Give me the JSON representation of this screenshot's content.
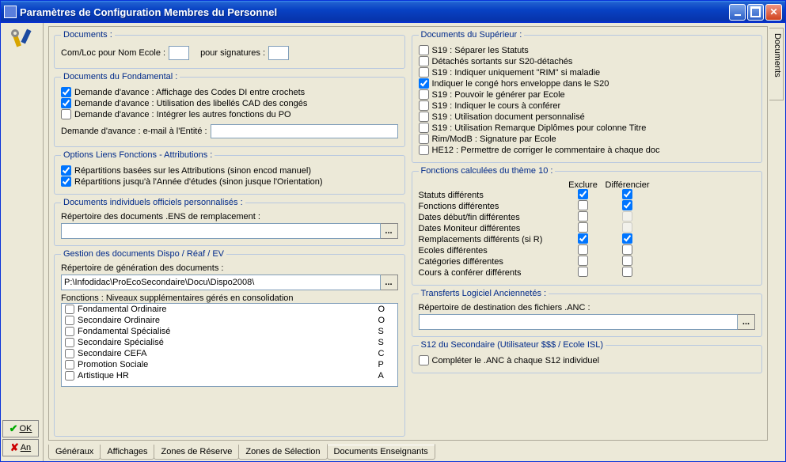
{
  "window": {
    "title": "Paramètres de Configuration Membres du Personnel"
  },
  "ok_btn": "OK",
  "an_btn": "An",
  "side_tab": "Documents",
  "documents": {
    "legend": "Documents :",
    "comloc_label": "Com/Loc pour Nom Ecole :",
    "comloc_value": "",
    "sign_label": "pour signatures :",
    "sign_value": ""
  },
  "fondamental": {
    "legend": "Documents du Fondamental :",
    "c1": "Demande d'avance : Affichage des Codes DI entre crochets",
    "c2": "Demande d'avance : Utilisation des libellés CAD des congés",
    "c3": "Demande d'avance : Intégrer les autres fonctions du PO",
    "email_label": "Demande d'avance : e-mail à l'Entité :",
    "email_value": ""
  },
  "options": {
    "legend": "Options Liens Fonctions - Attributions :",
    "c1": "Répartitions basées sur les Attributions (sinon encod manuel)",
    "c2": "Répartitions jusqu'à l'Année d'études (sinon jusque l'Orientation)"
  },
  "indiv": {
    "legend": "Documents individuels officiels personnalisés :",
    "rep_label": "Répertoire des documents .ENS de remplacement :",
    "rep_value": ""
  },
  "gestion": {
    "legend": "Gestion des documents Dispo / Réaf / EV",
    "rep_label": "Répertoire de génération des documents :",
    "rep_value": "P:\\Infodidac\\ProEcoSecondaire\\Docu\\Dispo2008\\",
    "niv_label": "Fonctions : Niveaux supplémentaires gérés en consolidation",
    "rows": [
      {
        "label": "Fondamental Ordinaire",
        "code": "O",
        "checked": false
      },
      {
        "label": "Secondaire Ordinaire",
        "code": "O",
        "checked": false
      },
      {
        "label": "Fondamental Spécialisé",
        "code": "S",
        "checked": false
      },
      {
        "label": "Secondaire Spécialisé",
        "code": "S",
        "checked": false
      },
      {
        "label": "Secondaire CEFA",
        "code": "C",
        "checked": false
      },
      {
        "label": "Promotion Sociale",
        "code": "P",
        "checked": false
      },
      {
        "label": "Artistique HR",
        "code": "A",
        "checked": false
      }
    ]
  },
  "superieur": {
    "legend": "Documents du Supérieur :",
    "items": [
      {
        "label": "S19 : Séparer les Statuts",
        "checked": false
      },
      {
        "label": "Détachés sortants sur S20-détachés",
        "checked": false
      },
      {
        "label": "S19 : Indiquer uniquement \"RIM\" si maladie",
        "checked": false
      },
      {
        "label": "Indiquer le congé hors enveloppe dans le S20",
        "checked": true
      },
      {
        "label": "S19 : Pouvoir le générer par Ecole",
        "checked": false
      },
      {
        "label": "S19 : Indiquer le cours à conférer",
        "checked": false
      },
      {
        "label": "S19 : Utilisation document personnalisé",
        "checked": false
      },
      {
        "label": "S19 : Utilisation Remarque Diplômes pour colonne Titre",
        "checked": false
      },
      {
        "label": "Rim/ModB : Signature par Ecole",
        "checked": false
      },
      {
        "label": "HE12 : Permettre de corriger le commentaire à chaque doc",
        "checked": false
      }
    ]
  },
  "theme10": {
    "legend": "Fonctions calculées du thème 10 :",
    "h1": "Exclure",
    "h2": "Différencier",
    "rows": [
      {
        "label": "Statuts différents",
        "exclure": true,
        "diff": true
      },
      {
        "label": "Fonctions différentes",
        "exclure": false,
        "diff": true
      },
      {
        "label": "Dates début/fin différentes",
        "exclure": false,
        "diff": false,
        "diff_disabled": true
      },
      {
        "label": "Dates Moniteur différentes",
        "exclure": false,
        "diff": false,
        "diff_disabled": true
      },
      {
        "label": "Remplacements différents (si R)",
        "exclure": true,
        "diff": true
      },
      {
        "label": "Ecoles différentes",
        "exclure": false,
        "diff": false
      },
      {
        "label": "Catégories différentes",
        "exclure": false,
        "diff": false
      },
      {
        "label": "Cours à conférer différents",
        "exclure": false,
        "diff": false
      }
    ]
  },
  "transferts": {
    "legend": "Transferts Logiciel Anciennetés :",
    "rep_label": "Répertoire de destination des fichiers .ANC :",
    "rep_value": ""
  },
  "s12": {
    "legend": "S12 du Secondaire (Utilisateur $$$ / Ecole ISL)",
    "c1": "Compléter le .ANC à chaque S12 individuel"
  },
  "tabs": {
    "t1": "Généraux",
    "t2": "Affichages",
    "t3": "Zones de Réserve",
    "t4": "Zones de Sélection",
    "t5": "Documents Enseignants"
  }
}
